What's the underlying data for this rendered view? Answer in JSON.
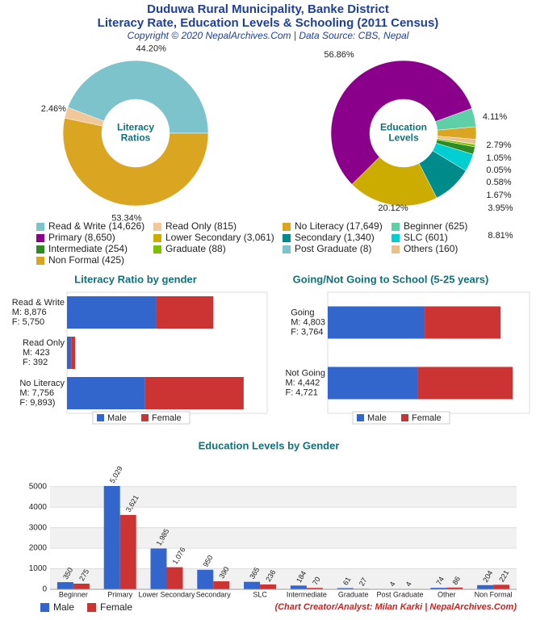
{
  "header": {
    "title": [
      "Duduwa Rural Municipality, Banke District",
      "Literacy Rate, Education Levels & Schooling (2011 Census)"
    ],
    "subtitle": "Copyright © 2020 NepalArchives.Com | Data Source: CBS, Nepal"
  },
  "chart_data": [
    {
      "type": "pie",
      "center_label": [
        "Literacy",
        "Ratios"
      ],
      "values": [
        44.2,
        2.46,
        53.34
      ],
      "value_labels": [
        "44.20%",
        "2.46%",
        "53.34%"
      ],
      "colors": [
        "#7dc3cb",
        "#f2c79a",
        "#daa520"
      ]
    },
    {
      "type": "pie",
      "center_label": [
        "Education",
        "Levels"
      ],
      "values": [
        56.86,
        20.12,
        8.81,
        3.95,
        1.67,
        0.58,
        0.05,
        1.05,
        2.79,
        4.11
      ],
      "value_labels": [
        "56.86%",
        "20.12%",
        "8.81%",
        "3.95%",
        "1.67%",
        "0.58%",
        "0.05%",
        "1.05%",
        "2.79%",
        "4.11%"
      ],
      "colors": [
        "#8b008b",
        "#ccac00",
        "#008b8b",
        "#00ced1",
        "#2e8b22",
        "#7cc000",
        "#7dc3cb",
        "#e9c08a",
        "#daa520",
        "#5fcfa8"
      ]
    },
    {
      "type": "hbar",
      "stacked": true,
      "title": "Literacy Ratio by gender",
      "categories": [
        "Read & Write",
        "Read Only",
        "No Literacy"
      ],
      "series": [
        {
          "name": "Male",
          "color": "#3366cc",
          "values": [
            8876,
            423,
            7756
          ],
          "value_labels": [
            "M: 8,876",
            "M: 423",
            "M: 7,756"
          ]
        },
        {
          "name": "Female",
          "color": "#cc3333",
          "values": [
            5750,
            392,
            9893
          ],
          "value_labels": [
            "F: 5,750",
            "F: 392",
            "F: 9,893)"
          ]
        }
      ],
      "xlim": [
        0,
        20000
      ]
    },
    {
      "type": "hbar",
      "stacked": true,
      "title": "Going/Not Going to School (5-25 years)",
      "categories": [
        "Going",
        "Not Going"
      ],
      "series": [
        {
          "name": "Male",
          "color": "#3366cc",
          "values": [
            4803,
            4442
          ],
          "value_labels": [
            "M: 4,803",
            "M: 4,442"
          ]
        },
        {
          "name": "Female",
          "color": "#cc3333",
          "values": [
            3764,
            4721
          ],
          "value_labels": [
            "F: 3,764",
            "F: 4,721"
          ]
        }
      ],
      "xlim": [
        0,
        10000
      ]
    },
    {
      "type": "bar",
      "title": "Education Levels by Gender",
      "categories": [
        "Beginner",
        "Primary",
        "Lower Secondary",
        "Secondary",
        "SLC",
        "Intermediate",
        "Graduate",
        "Post Graduate",
        "Other",
        "Non Formal"
      ],
      "series": [
        {
          "name": "Male",
          "color": "#3366cc",
          "values": [
            350,
            5029,
            1985,
            950,
            365,
            184,
            61,
            4,
            74,
            204
          ],
          "value_labels": [
            "350",
            "5,029",
            "1,985",
            "950",
            "365",
            "184",
            "61",
            "4",
            "74",
            "204"
          ]
        },
        {
          "name": "Female",
          "color": "#cc3333",
          "values": [
            275,
            3621,
            1076,
            390,
            236,
            70,
            27,
            4,
            86,
            221
          ],
          "value_labels": [
            "275",
            "3,621",
            "1,076",
            "390",
            "236",
            "70",
            "27",
            "4",
            "86",
            "221"
          ]
        }
      ],
      "ylim": [
        0,
        5500
      ],
      "yticks": [
        0,
        1000,
        2000,
        3000,
        4000,
        5000
      ],
      "grid": true
    }
  ],
  "legend": [
    {
      "label": "Read & Write (14,626)",
      "color": "#7dc3cb"
    },
    {
      "label": "Read Only (815)",
      "color": "#f2c79a"
    },
    {
      "label": "No Literacy (17,649)",
      "color": "#daa520"
    },
    {
      "label": "Beginner (625)",
      "color": "#5fcfa8"
    },
    {
      "label": "Primary (8,650)",
      "color": "#8b008b"
    },
    {
      "label": "Lower Secondary (3,061)",
      "color": "#ccac00"
    },
    {
      "label": "Secondary (1,340)",
      "color": "#008b8b"
    },
    {
      "label": "SLC (601)",
      "color": "#00ced1"
    },
    {
      "label": "Intermediate (254)",
      "color": "#2e8b22"
    },
    {
      "label": "Graduate (88)",
      "color": "#7cc000"
    },
    {
      "label": "Post Graduate (8)",
      "color": "#7dc3cb"
    },
    {
      "label": "Others (160)",
      "color": "#e9c08a"
    },
    {
      "label": "Non Formal (425)",
      "color": "#daa520"
    }
  ],
  "footer": "(Chart Creator/Analyst: Milan Karki | NepalArchives.Com)"
}
